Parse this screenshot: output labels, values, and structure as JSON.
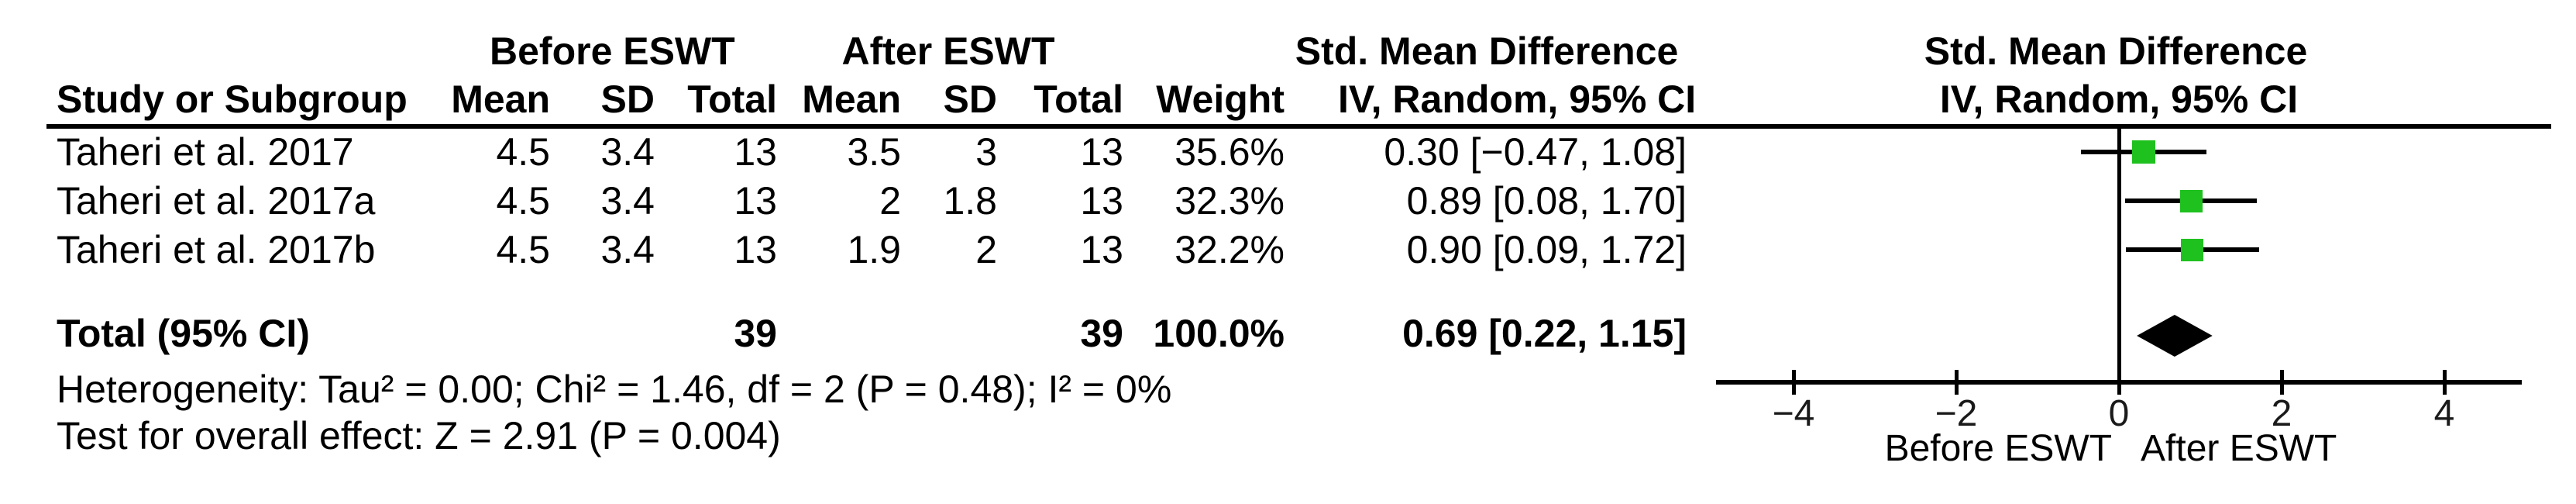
{
  "groups": {
    "before": "Before ESWT",
    "after": "After ESWT",
    "smd_table": "Std. Mean Difference",
    "smd_plot": "Std. Mean Difference",
    "iv_table": "IV, Random, 95% CI",
    "iv_plot": "IV, Random, 95% CI"
  },
  "header": {
    "study": "Study or Subgroup",
    "mean1": "Mean",
    "sd1": "SD",
    "total1": "Total",
    "mean2": "Mean",
    "sd2": "SD",
    "total2": "Total",
    "weight": "Weight"
  },
  "rows": [
    {
      "study": "Taheri et al. 2017",
      "mean1": "4.5",
      "sd1": "3.4",
      "total1": "13",
      "mean2": "3.5",
      "sd2": "3",
      "total2": "13",
      "weight": "35.6%",
      "ci": "0.30 [−0.47, 1.08]"
    },
    {
      "study": "Taheri et al. 2017a",
      "mean1": "4.5",
      "sd1": "3.4",
      "total1": "13",
      "mean2": "2",
      "sd2": "1.8",
      "total2": "13",
      "weight": "32.3%",
      "ci": "0.89 [0.08, 1.70]"
    },
    {
      "study": "Taheri et al. 2017b",
      "mean1": "4.5",
      "sd1": "3.4",
      "total1": "13",
      "mean2": "1.9",
      "sd2": "2",
      "total2": "13",
      "weight": "32.2%",
      "ci": "0.90 [0.09, 1.72]"
    }
  ],
  "total": {
    "label": "Total (95% CI)",
    "total1": "39",
    "total2": "39",
    "weight": "100.0%",
    "ci": "0.69 [0.22, 1.15]"
  },
  "footnotes": {
    "heterogeneity": "Heterogeneity: Tau² = 0.00; Chi² = 1.46, df = 2 (P = 0.48); I² = 0%",
    "overall_effect": "Test for overall effect: Z = 2.91 (P = 0.004)"
  },
  "axis_labels": {
    "left": "Before ESWT",
    "right": "After ESWT"
  },
  "chart_data": {
    "type": "forest",
    "effect_measure": "Std. Mean Difference, IV, Random, 95% CI",
    "studies": [
      {
        "name": "Taheri et al. 2017",
        "est": 0.3,
        "ci": [
          -0.47,
          1.08
        ],
        "weight_pct": 35.6
      },
      {
        "name": "Taheri et al. 2017a",
        "est": 0.89,
        "ci": [
          0.08,
          1.7
        ],
        "weight_pct": 32.3
      },
      {
        "name": "Taheri et al. 2017b",
        "est": 0.9,
        "ci": [
          0.09,
          1.72
        ],
        "weight_pct": 32.2
      }
    ],
    "total": {
      "est": 0.69,
      "ci": [
        0.22,
        1.15
      ],
      "n_before": 39,
      "n_after": 39,
      "weight_pct": 100.0
    },
    "heterogeneity": {
      "tau2": 0.0,
      "chi2": 1.46,
      "df": 2,
      "p": 0.48,
      "i2_pct": 0
    },
    "overall_effect": {
      "z": 2.91,
      "p": 0.004
    },
    "axis": {
      "min": -4.95,
      "max": 4.95,
      "ticks": [
        {
          "label": "−4",
          "value": -4
        },
        {
          "label": "−2",
          "value": -2
        },
        {
          "label": "0",
          "value": 0
        },
        {
          "label": "2",
          "value": 2
        },
        {
          "label": "4",
          "value": 4
        }
      ],
      "favours_left": "Before ESWT",
      "favours_right": "After ESWT"
    },
    "marker_color": "#1fc11f",
    "summary_color": "#000000",
    "line_color": "#000000"
  }
}
